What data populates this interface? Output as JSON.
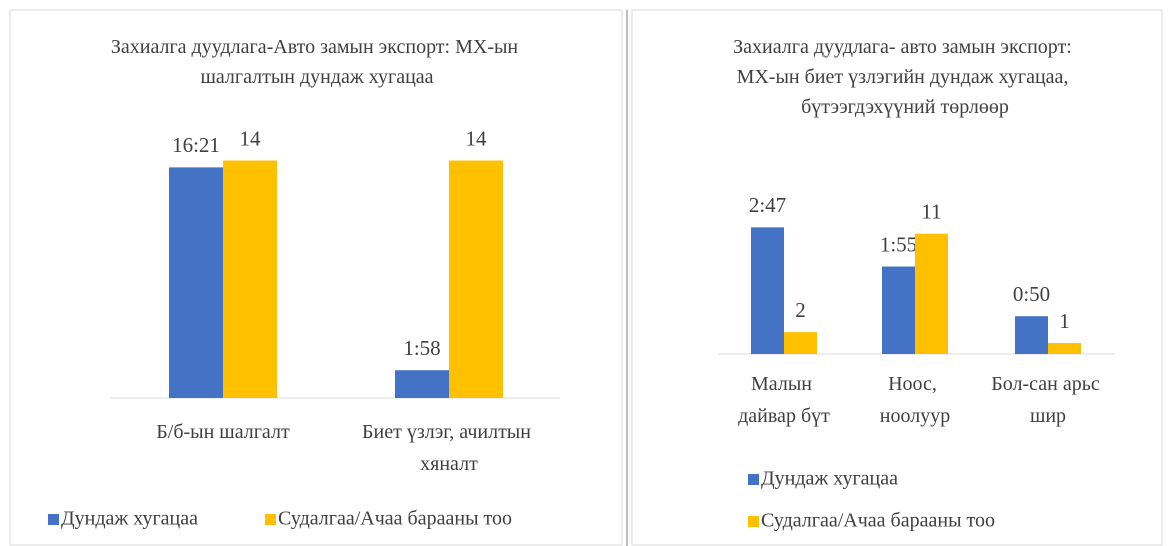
{
  "chart_data": [
    {
      "type": "bar",
      "title": "Захиалга дуудлага-Авто замын экспорт: МХ-ын шалгалтын дундаж хугацаа",
      "categories": [
        "Б/б-ын шалгалт",
        "Биет үзлэг, ачилтын хяналт"
      ],
      "ylim": [
        0,
        19
      ],
      "y2lim": [
        0,
        15.8
      ],
      "series": [
        {
          "name": "Дундаж хугацаа",
          "color": "#4472c4",
          "values": [
            16.35,
            1.97
          ],
          "value_labels": [
            "16:21",
            "1:58"
          ]
        },
        {
          "name": "Судалгаа/Ачаа барааны тоо",
          "color": "#ffc000",
          "axis": "y2",
          "values": [
            14,
            14
          ]
        }
      ],
      "legend": "bottom"
    },
    {
      "type": "bar",
      "title": "Захиалга дуудлага- авто замын экспорт: МХ-ын биет үзлэгийн дундаж хугацаа, бүтээгдэхүүний төрлөөр",
      "categories": [
        "Малын дайвар бүт",
        "Ноос, ноолуур",
        "Бол-сан арьс шир"
      ],
      "ylim": [
        0,
        3.6
      ],
      "y2lim": [
        0,
        15
      ],
      "series": [
        {
          "name": "Дундаж хугацаа",
          "color": "#4472c4",
          "values": [
            2.78,
            1.92,
            0.83
          ],
          "value_labels": [
            "2:47",
            "1:55",
            "0:50"
          ]
        },
        {
          "name": "Судалгаа/Ачаа барааны тоо",
          "color": "#ffc000",
          "axis": "y2",
          "values": [
            2,
            11,
            1
          ]
        }
      ],
      "legend": "bottom"
    }
  ]
}
